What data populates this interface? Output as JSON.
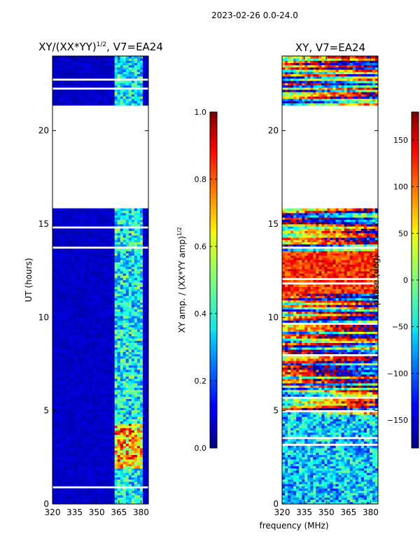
{
  "suptitle": "2023-02-26 0.0-24.0",
  "xlabel_shared": "frequency (MHz)",
  "chart_data": [
    {
      "type": "heatmap",
      "title": "XY/(XX*YY)",
      "title_exponent": "1/2",
      "title_suffix": ", V7=EA24",
      "xlabel": "",
      "ylabel": "UT (hours)",
      "xlim": [
        320,
        385
      ],
      "ylim": [
        0,
        24
      ],
      "xticks": [
        320,
        335,
        350,
        365,
        380
      ],
      "yticks": [
        0,
        5,
        10,
        15,
        20
      ],
      "data_gaps_hours": [
        [
          15.8,
          21.4
        ],
        [
          22.2,
          22.35
        ]
      ],
      "bright_channel_band_mhz": [
        362,
        382
      ],
      "colorbar": {
        "label": "XY amp. / (XX*YY amp)",
        "label_exponent": "1/2",
        "range": [
          0.0,
          1.0
        ],
        "ticks": [
          0.0,
          0.2,
          0.4,
          0.6,
          0.8,
          1.0
        ],
        "tick_labels": [
          "0.0",
          "0.2",
          "0.4",
          "0.6",
          "0.8",
          "1.0"
        ],
        "colormap": "jet"
      }
    },
    {
      "type": "heatmap",
      "title": "XY, V7=EA24",
      "xlabel": "frequency (MHz)",
      "ylabel": "",
      "xlim": [
        320,
        385
      ],
      "ylim": [
        0,
        24
      ],
      "xticks": [
        320,
        335,
        350,
        365,
        380
      ],
      "yticks": [
        0,
        5,
        10,
        15,
        20
      ],
      "data_gaps_hours": [
        [
          15.8,
          21.4
        ]
      ],
      "colorbar": {
        "label": "phase (deg)",
        "range": [
          -180,
          180
        ],
        "ticks": [
          -150,
          -100,
          -50,
          0,
          50,
          100,
          150
        ],
        "tick_labels": [
          "−150",
          "−100",
          "−50",
          "0",
          "50",
          "100",
          "150"
        ],
        "colormap": "jet"
      }
    }
  ]
}
